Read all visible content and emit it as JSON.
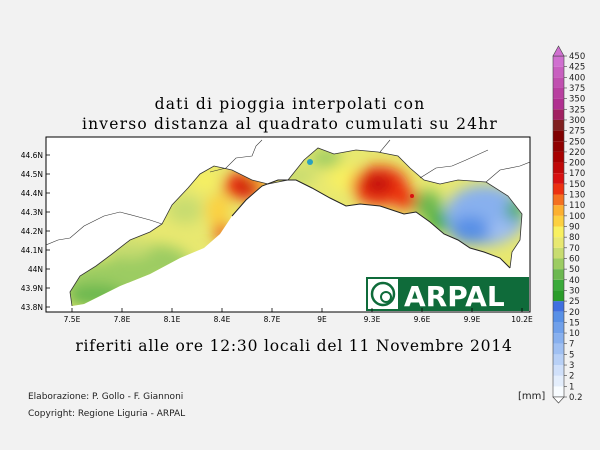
{
  "title_line1": "dati di pioggia interpolati con",
  "title_line2": "inverso distanza al quadrato cumulati su 24hr",
  "subtitle": "riferiti alle ore 12:30 locali del 11 Novembre 2014",
  "credit_line1": "Elaborazione: P. Gollo - F. Giannoni",
  "credit_line2": "Copyright: Regione Liguria - ARPAL",
  "unit_label": "[mm]",
  "logo_text": "ARPAL",
  "map_axes": {
    "lon_ticks": [
      "7.5E",
      "7.8E",
      "8.1E",
      "8.4E",
      "8.7E",
      "9E",
      "9.3E",
      "9.6E",
      "9.9E",
      "10.2E"
    ],
    "lat_ticks": [
      "44.6N",
      "44.5N",
      "44.4N",
      "44.3N",
      "44.2N",
      "44.1N",
      "44N",
      "43.9N",
      "43.8N"
    ],
    "lon_range": [
      7.4,
      10.25
    ],
    "lat_range": [
      43.78,
      44.65
    ]
  },
  "legend": {
    "levels": [
      "0.2",
      "1",
      "2",
      "3",
      "5",
      "7",
      "10",
      "15",
      "20",
      "25",
      "30",
      "40",
      "50",
      "60",
      "70",
      "80",
      "90",
      "100",
      "110",
      "130",
      "150",
      "170",
      "200",
      "220",
      "250",
      "275",
      "300",
      "325",
      "350",
      "375",
      "400",
      "425",
      "450"
    ],
    "colors": [
      "#f8fcff",
      "#e4eefc",
      "#d0e0fa",
      "#b8d0f6",
      "#a0c0f2",
      "#88b0ee",
      "#70a0ea",
      "#5890e6",
      "#4070e0",
      "#2a9c2a",
      "#3aaa3a",
      "#6cb850",
      "#9ccc62",
      "#c8dc70",
      "#e8e870",
      "#f8f060",
      "#fcd040",
      "#fcb030",
      "#f47020",
      "#ec3010",
      "#d81010",
      "#c00808",
      "#a80000",
      "#900000",
      "#800000",
      "#802020",
      "#a02060",
      "#b03090",
      "#b840a0",
      "#c050b0",
      "#c860c0",
      "#d070d0"
    ]
  },
  "rain_cells": [
    {
      "lon": 8.45,
      "lat": 44.38,
      "mm": 150
    },
    {
      "lon": 8.35,
      "lat": 44.15,
      "mm": 120
    },
    {
      "lon": 9.33,
      "lat": 44.38,
      "mm": 170
    },
    {
      "lon": 9.5,
      "lat": 44.32,
      "mm": 140
    },
    {
      "lon": 8.8,
      "lat": 44.48,
      "mm": 80
    },
    {
      "lon": 9.05,
      "lat": 44.48,
      "mm": 60
    },
    {
      "lon": 8.2,
      "lat": 44.3,
      "mm": 70
    },
    {
      "lon": 7.8,
      "lat": 44.0,
      "mm": 45
    },
    {
      "lon": 9.95,
      "lat": 44.25,
      "mm": 10
    },
    {
      "lon": 9.7,
      "lat": 44.2,
      "mm": 35
    }
  ]
}
